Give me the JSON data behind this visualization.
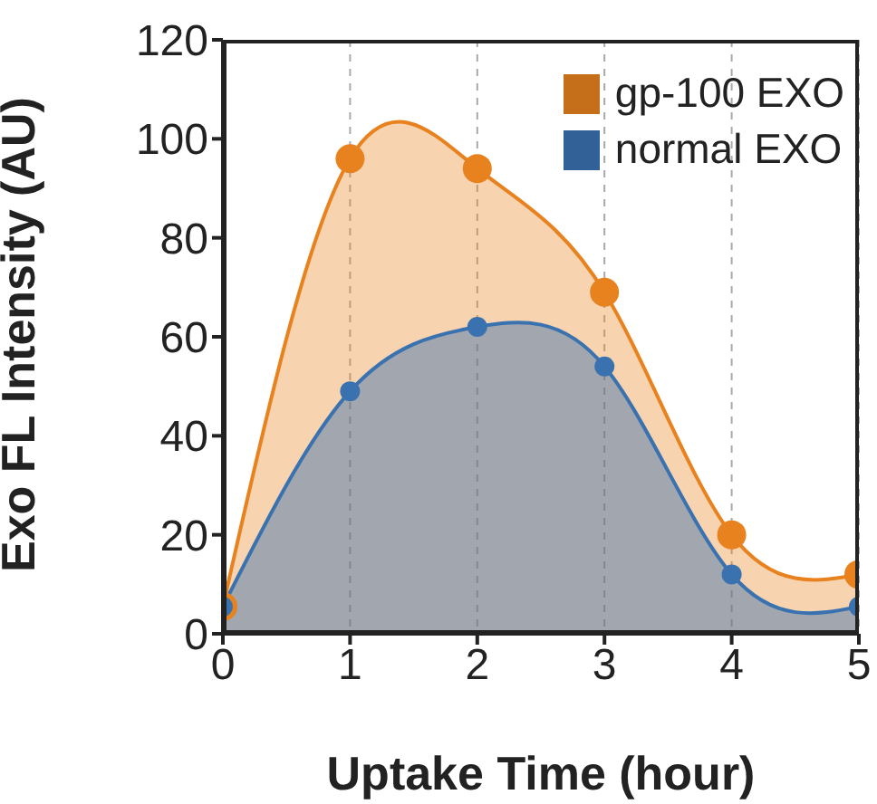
{
  "chart_data": {
    "type": "area",
    "xlabel": "Uptake Time (hour)",
    "ylabel": "Exo FL Intensity (AU)",
    "x": [
      0,
      1,
      2,
      3,
      4,
      5
    ],
    "series": [
      {
        "name": "gp-100 EXO",
        "color": "#e8821e",
        "values": [
          5.5,
          96,
          94,
          69,
          20,
          12
        ]
      },
      {
        "name": "normal EXO",
        "color": "#3a72b0",
        "values": [
          5.5,
          49,
          62,
          54,
          12,
          5.5
        ]
      }
    ],
    "xlim": [
      0,
      5
    ],
    "xticks": [
      0,
      1,
      2,
      3,
      4,
      5
    ],
    "ylim": [
      0,
      120
    ],
    "yticks": [
      0,
      20,
      40,
      60,
      80,
      100,
      120
    ],
    "grid": "x",
    "legend": "top right",
    "marker": "circle"
  }
}
